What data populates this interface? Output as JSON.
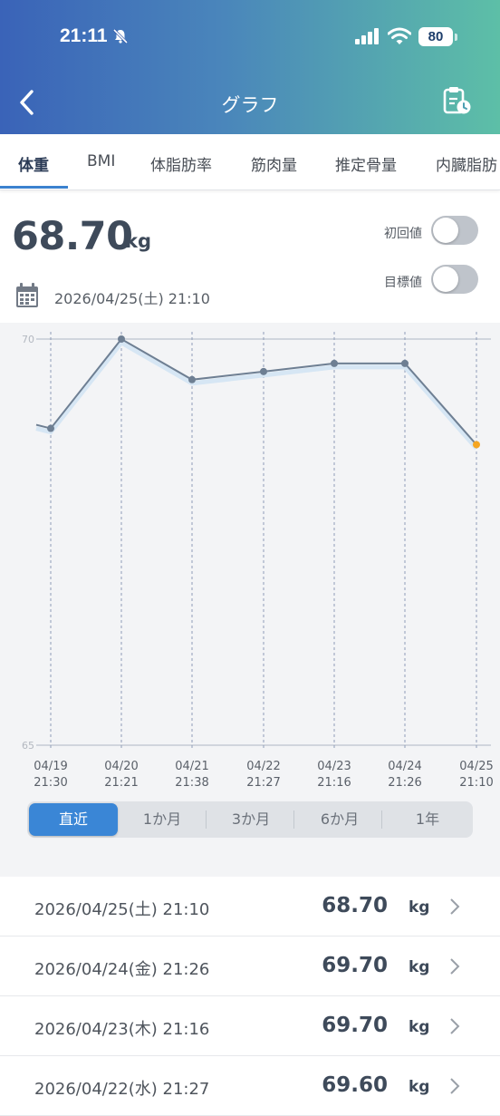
{
  "status": {
    "time": "21:11",
    "battery": "80"
  },
  "header": {
    "title": "グラフ"
  },
  "tabs": [
    "体重",
    "BMI",
    "体脂肪率",
    "筋肉量",
    "推定骨量",
    "内臓脂肪"
  ],
  "current": {
    "value": "68.70",
    "unit": "kg",
    "datetime": "2026/04/25(土) 21:10"
  },
  "toggles": {
    "initial_label": "初回値",
    "target_label": "目標値"
  },
  "colors": {
    "accent": "#3a86d6",
    "line": "#6e7f93",
    "latest_point": "#f5a623",
    "header_start": "#3a63b8",
    "header_end": "#5dbfa7"
  },
  "chart_data": {
    "type": "line",
    "x": [
      "04/19 21:30",
      "04/20 21:21",
      "04/21 21:38",
      "04/22 21:27",
      "04/23 21:16",
      "04/24 21:26",
      "04/25 21:10"
    ],
    "x_ticks": [
      {
        "date": "04/19",
        "time": "21:30"
      },
      {
        "date": "04/20",
        "time": "21:21"
      },
      {
        "date": "04/21",
        "time": "21:38"
      },
      {
        "date": "04/22",
        "time": "21:27"
      },
      {
        "date": "04/23",
        "time": "21:16"
      },
      {
        "date": "04/24",
        "time": "21:26"
      },
      {
        "date": "04/25",
        "time": "21:10"
      }
    ],
    "values": [
      68.9,
      70.0,
      69.5,
      69.6,
      69.7,
      69.7,
      68.7
    ],
    "ylim": [
      65,
      70
    ],
    "yticks": [
      "70",
      "65"
    ]
  },
  "periods": [
    "直近",
    "1か月",
    "3か月",
    "6か月",
    "1年"
  ],
  "records": [
    {
      "date": "2026/04/25(土) 21:10",
      "value": "68.70",
      "unit": "kg"
    },
    {
      "date": "2026/04/24(金) 21:26",
      "value": "69.70",
      "unit": "kg"
    },
    {
      "date": "2026/04/23(木) 21:16",
      "value": "69.70",
      "unit": "kg"
    },
    {
      "date": "2026/04/22(水) 21:27",
      "value": "69.60",
      "unit": "kg"
    }
  ]
}
